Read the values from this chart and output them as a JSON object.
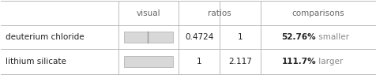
{
  "col_headers_visual": "visual",
  "col_headers_ratios": "ratios",
  "col_headers_comparisons": "comparisons",
  "rows": [
    {
      "name": "deuterium chloride",
      "bar_ratio": 0.4724,
      "ratio1": "0.4724",
      "ratio2": "1",
      "comparison_value": "52.76%",
      "comparison_text": " smaller"
    },
    {
      "name": "lithium silicate",
      "bar_ratio": 1.0,
      "ratio1": "1",
      "ratio2": "2.117",
      "comparison_value": "111.7%",
      "comparison_text": " larger"
    }
  ],
  "bar_fill_color": "#d8d8d8",
  "bar_edge_color": "#aaaaaa",
  "bar_divider_color": "#999999",
  "grid_color": "#bbbbbb",
  "header_text_color": "#666666",
  "cell_text_color": "#222222",
  "comparison_bold_color": "#222222",
  "comparison_gray_color": "#888888",
  "background_color": "#ffffff",
  "fig_width": 4.76,
  "fig_height": 0.95
}
